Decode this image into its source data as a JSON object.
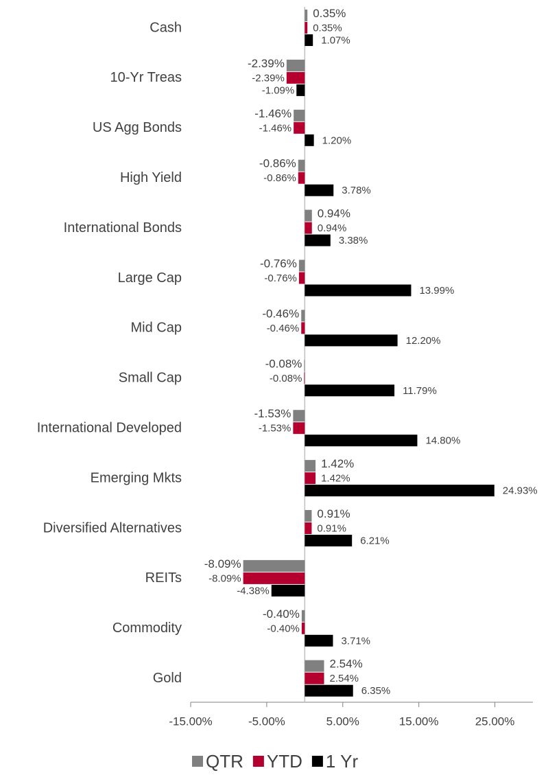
{
  "chart_data": {
    "type": "bar",
    "orientation": "horizontal",
    "categories": [
      "Cash",
      "10-Yr Treas",
      "US Agg Bonds",
      "High Yield",
      "International Bonds",
      "Large Cap",
      "Mid Cap",
      "Small Cap",
      "International Developed",
      "Emerging Mkts",
      "Diversified Alternatives",
      "REITs",
      "Commodity",
      "Gold"
    ],
    "series": [
      {
        "name": "QTR",
        "color": "#808080",
        "values": [
          0.35,
          -2.39,
          -1.46,
          -0.86,
          0.94,
          -0.76,
          -0.46,
          -0.08,
          -1.53,
          1.42,
          0.91,
          -8.09,
          -0.4,
          2.54
        ],
        "value_labels": [
          "0.35%",
          "-2.39%",
          "-1.46%",
          "-0.86%",
          "0.94%",
          "-0.76%",
          "-0.46%",
          "-0.08%",
          "-1.53%",
          "1.42%",
          "0.91%",
          "-8.09%",
          "-0.40%",
          "2.54%"
        ]
      },
      {
        "name": "YTD",
        "color": "#b5002f",
        "values": [
          0.35,
          -2.39,
          -1.46,
          -0.86,
          0.94,
          -0.76,
          -0.46,
          -0.08,
          -1.53,
          1.42,
          0.91,
          -8.09,
          -0.4,
          2.54
        ],
        "value_labels": [
          "0.35%",
          "-2.39%",
          "-1.46%",
          "-0.86%",
          "0.94%",
          "-0.76%",
          "-0.46%",
          "-0.08%",
          "-1.53%",
          "1.42%",
          "0.91%",
          "-8.09%",
          "-0.40%",
          "2.54%"
        ]
      },
      {
        "name": "1 Yr",
        "color": "#000000",
        "values": [
          1.07,
          -1.09,
          1.2,
          3.78,
          3.38,
          13.99,
          12.2,
          11.79,
          14.8,
          24.93,
          6.21,
          -4.38,
          3.71,
          6.35
        ],
        "value_labels": [
          "1.07%",
          "-1.09%",
          "1.20%",
          "3.78%",
          "3.38%",
          "13.99%",
          "12.20%",
          "11.79%",
          "14.80%",
          "24.93%",
          "6.21%",
          "-4.38%",
          "3.71%",
          "6.35%"
        ]
      }
    ],
    "xlim": [
      -15,
      30
    ],
    "xticks": [
      {
        "value": -15,
        "label": "-15.00%"
      },
      {
        "value": -5,
        "label": "-5.00%"
      },
      {
        "value": 5,
        "label": "5.00%"
      },
      {
        "value": 15,
        "label": "15.00%"
      },
      {
        "value": 25,
        "label": "25.00%"
      }
    ],
    "legend": "bottom"
  }
}
